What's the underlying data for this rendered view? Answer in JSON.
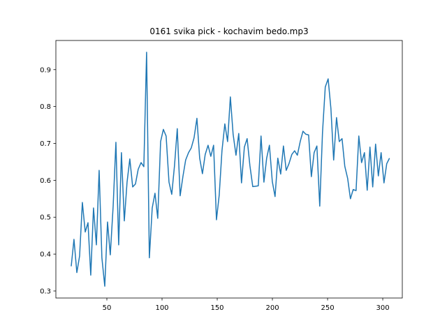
{
  "chart_data": {
    "type": "line",
    "title": "0161 svika pick - kochavim bedo.mp3",
    "x": [
      17.7,
      20.2,
      22.8,
      25.3,
      27.8,
      30.4,
      32.9,
      35.4,
      37.9,
      40.5,
      43.0,
      45.5,
      48.1,
      50.6,
      53.1,
      55.7,
      58.2,
      60.7,
      63.2,
      65.8,
      68.3,
      70.8,
      73.4,
      75.9,
      78.4,
      81.0,
      83.5,
      86.0,
      88.5,
      91.1,
      93.6,
      96.1,
      98.7,
      101.2,
      103.7,
      106.3,
      108.8,
      111.3,
      113.8,
      116.4,
      118.9,
      121.4,
      124.0,
      126.5,
      129.0,
      131.6,
      134.1,
      136.6,
      139.1,
      141.7,
      144.2,
      146.7,
      149.3,
      151.8,
      154.3,
      156.9,
      159.4,
      161.9,
      164.4,
      167.0,
      169.5,
      172.0,
      174.6,
      177.1,
      179.6,
      182.2,
      184.7,
      187.2,
      189.7,
      192.3,
      194.8,
      197.3,
      199.9,
      202.4,
      204.9,
      207.5,
      210.0,
      212.5,
      215.0,
      217.6,
      220.1,
      222.6,
      225.2,
      227.7,
      230.2,
      232.8,
      235.3,
      237.8,
      240.3,
      242.9,
      245.4,
      247.9,
      250.5,
      253.0,
      255.5,
      258.1,
      260.6,
      263.1,
      265.6,
      268.2,
      270.7,
      273.2,
      275.8,
      278.3,
      280.8,
      283.4,
      285.9,
      288.4,
      290.9,
      293.5,
      296.0,
      298.5,
      301.1,
      303.6,
      306.1
    ],
    "series": [
      {
        "color": "#1f77b4",
        "values": [
          0.367,
          0.44,
          0.35,
          0.395,
          0.54,
          0.46,
          0.485,
          0.343,
          0.525,
          0.425,
          0.627,
          0.39,
          0.313,
          0.487,
          0.398,
          0.53,
          0.703,
          0.425,
          0.675,
          0.49,
          0.595,
          0.658,
          0.582,
          0.59,
          0.63,
          0.648,
          0.637,
          0.947,
          0.39,
          0.525,
          0.565,
          0.497,
          0.705,
          0.738,
          0.72,
          0.595,
          0.562,
          0.64,
          0.74,
          0.558,
          0.61,
          0.655,
          0.675,
          0.688,
          0.715,
          0.768,
          0.66,
          0.618,
          0.67,
          0.695,
          0.665,
          0.695,
          0.493,
          0.56,
          0.68,
          0.753,
          0.705,
          0.826,
          0.725,
          0.668,
          0.727,
          0.593,
          0.69,
          0.713,
          0.64,
          0.583,
          0.584,
          0.585,
          0.72,
          0.595,
          0.66,
          0.695,
          0.597,
          0.556,
          0.66,
          0.617,
          0.693,
          0.627,
          0.645,
          0.67,
          0.68,
          0.668,
          0.705,
          0.733,
          0.725,
          0.723,
          0.61,
          0.675,
          0.693,
          0.53,
          0.73,
          0.853,
          0.875,
          0.795,
          0.655,
          0.77,
          0.705,
          0.713,
          0.638,
          0.605,
          0.55,
          0.575,
          0.572,
          0.72,
          0.648,
          0.675,
          0.573,
          0.69,
          0.582,
          0.698,
          0.612,
          0.675,
          0.593,
          0.645,
          0.66
        ]
      }
    ],
    "xlim": [
      3.8,
      317.7
    ],
    "xticks": [
      50,
      100,
      150,
      200,
      250,
      300
    ],
    "ylim": [
      0.281,
      0.979
    ],
    "yticks": [
      0.3,
      0.4,
      0.5,
      0.6,
      0.7,
      0.8,
      0.9
    ]
  }
}
